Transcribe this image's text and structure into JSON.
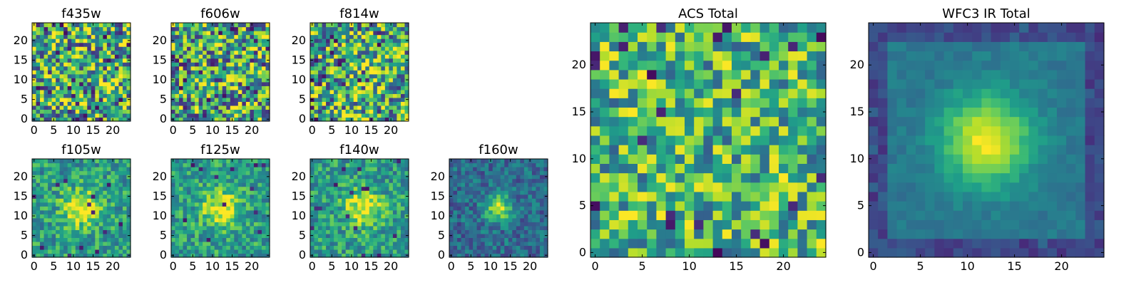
{
  "colormap": {
    "name": "viridis",
    "stops": [
      "#440154",
      "#482878",
      "#3e4989",
      "#31688e",
      "#26828e",
      "#1f9e89",
      "#35b779",
      "#6ece58",
      "#b5de2b",
      "#fde725"
    ]
  },
  "chart_data": [
    {
      "type": "heatmap",
      "id": "f435w",
      "title": "f435w",
      "grid_size": 25,
      "x_ticks": [
        0,
        5,
        10,
        15,
        20
      ],
      "y_ticks": [
        0,
        5,
        10,
        15,
        20
      ],
      "xlim": [
        -0.5,
        24.5
      ],
      "ylim": [
        -0.5,
        24.5
      ],
      "pattern": "noise",
      "peak": [
        12,
        12
      ],
      "noise_level": 0.95,
      "base": 0.6,
      "seed": 11
    },
    {
      "type": "heatmap",
      "id": "f606w",
      "title": "f606w",
      "grid_size": 25,
      "x_ticks": [
        0,
        5,
        10,
        15,
        20
      ],
      "y_ticks": [
        0,
        5,
        10,
        15,
        20
      ],
      "xlim": [
        -0.5,
        24.5
      ],
      "ylim": [
        -0.5,
        24.5
      ],
      "pattern": "noise",
      "peak": [
        12,
        12
      ],
      "noise_level": 0.95,
      "base": 0.6,
      "seed": 23
    },
    {
      "type": "heatmap",
      "id": "f814w",
      "title": "f814w",
      "grid_size": 25,
      "x_ticks": [
        0,
        5,
        10,
        15,
        20
      ],
      "y_ticks": [
        0,
        5,
        10,
        15,
        20
      ],
      "xlim": [
        -0.5,
        24.5
      ],
      "ylim": [
        -0.5,
        24.5
      ],
      "pattern": "noise_faint_source",
      "peak": [
        13,
        12
      ],
      "noise_level": 0.9,
      "base": 0.6,
      "seed": 37
    },
    {
      "type": "heatmap",
      "id": "f105w",
      "title": "f105w",
      "grid_size": 25,
      "x_ticks": [
        0,
        5,
        10,
        15,
        20
      ],
      "y_ticks": [
        0,
        5,
        10,
        15,
        20
      ],
      "xlim": [
        -0.5,
        24.5
      ],
      "ylim": [
        -0.5,
        24.5
      ],
      "pattern": "source",
      "peak": [
        12,
        12
      ],
      "noise_level": 0.45,
      "base": 0.55,
      "seed": 41
    },
    {
      "type": "heatmap",
      "id": "f125w",
      "title": "f125w",
      "grid_size": 25,
      "x_ticks": [
        0,
        5,
        10,
        15,
        20
      ],
      "y_ticks": [
        0,
        5,
        10,
        15,
        20
      ],
      "xlim": [
        -0.5,
        24.5
      ],
      "ylim": [
        -0.5,
        24.5
      ],
      "pattern": "source",
      "peak": [
        12,
        12
      ],
      "noise_level": 0.45,
      "base": 0.55,
      "seed": 53
    },
    {
      "type": "heatmap",
      "id": "f140w",
      "title": "f140w",
      "grid_size": 25,
      "x_ticks": [
        0,
        5,
        10,
        15,
        20
      ],
      "y_ticks": [
        0,
        5,
        10,
        15,
        20
      ],
      "xlim": [
        -0.5,
        24.5
      ],
      "ylim": [
        -0.5,
        24.5
      ],
      "pattern": "source",
      "peak": [
        13,
        12
      ],
      "noise_level": 0.45,
      "base": 0.55,
      "seed": 67
    },
    {
      "type": "heatmap",
      "id": "f160w",
      "title": "f160w",
      "grid_size": 25,
      "x_ticks": [
        0,
        5,
        10,
        15,
        20
      ],
      "y_ticks": [
        0,
        5,
        10,
        15,
        20
      ],
      "xlim": [
        -0.5,
        24.5
      ],
      "ylim": [
        -0.5,
        24.5
      ],
      "pattern": "source_dark",
      "peak": [
        12,
        12
      ],
      "noise_level": 0.35,
      "base": 0.35,
      "seed": 79
    },
    {
      "type": "heatmap",
      "id": "acs_total",
      "title": "ACS Total",
      "grid_size": 25,
      "x_ticks": [
        0,
        5,
        10,
        15,
        20
      ],
      "y_ticks": [
        0,
        5,
        10,
        15,
        20
      ],
      "xlim": [
        -0.5,
        24.5
      ],
      "ylim": [
        -0.5,
        24.5
      ],
      "pattern": "noise",
      "peak": [
        12,
        12
      ],
      "noise_level": 0.7,
      "base": 0.65,
      "seed": 97
    },
    {
      "type": "heatmap",
      "id": "wfc3_ir_total",
      "title": "WFC3 IR Total",
      "grid_size": 25,
      "x_ticks": [
        0,
        5,
        10,
        15,
        20
      ],
      "y_ticks": [
        0,
        5,
        10,
        15,
        20
      ],
      "xlim": [
        -0.5,
        24.5
      ],
      "ylim": [
        -0.5,
        24.5
      ],
      "pattern": "smooth_source",
      "peak": [
        12,
        12
      ],
      "noise_level": 0.12,
      "base": 0.4,
      "seed": 101
    }
  ]
}
